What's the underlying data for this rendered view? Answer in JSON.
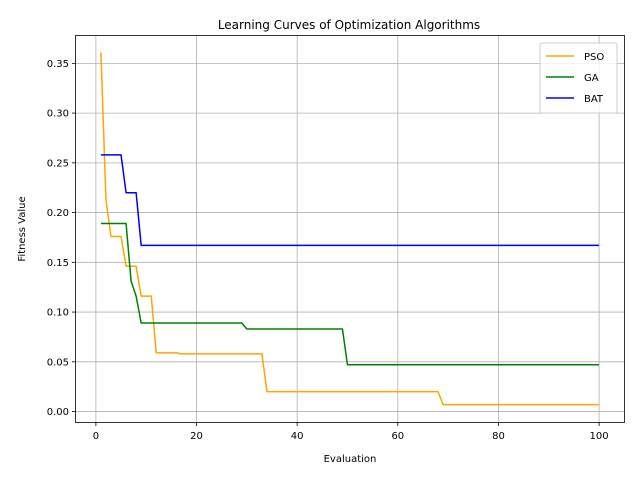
{
  "chart_data": {
    "type": "line",
    "title": "Learning Curves of Optimization Algorithms",
    "xlabel": "Evaluation",
    "ylabel": "Fitness Value",
    "xlim": [
      -3.95,
      104.95
    ],
    "ylim": [
      -0.0105,
      0.3775
    ],
    "xticks": [
      0,
      20,
      40,
      60,
      80,
      100
    ],
    "yticks": [
      0.0,
      0.05,
      0.1,
      0.15,
      0.2,
      0.25,
      0.3,
      0.35
    ],
    "xtick_labels": [
      "0",
      "20",
      "40",
      "60",
      "80",
      "100"
    ],
    "ytick_labels": [
      "0.00",
      "0.05",
      "0.10",
      "0.15",
      "0.20",
      "0.25",
      "0.30",
      "0.35"
    ],
    "grid": true,
    "legend_position": "top-right",
    "series": [
      {
        "name": "PSO",
        "color": "#ffa500",
        "points": [
          [
            1,
            0.361
          ],
          [
            2,
            0.213
          ],
          [
            3,
            0.176
          ],
          [
            4,
            0.176
          ],
          [
            5,
            0.176
          ],
          [
            6,
            0.146
          ],
          [
            7,
            0.146
          ],
          [
            8,
            0.146
          ],
          [
            9,
            0.116
          ],
          [
            10,
            0.116
          ],
          [
            11,
            0.116
          ],
          [
            12,
            0.059
          ],
          [
            16,
            0.059
          ],
          [
            17,
            0.058
          ],
          [
            33,
            0.058
          ],
          [
            34,
            0.02
          ],
          [
            68,
            0.02
          ],
          [
            69,
            0.007
          ],
          [
            100,
            0.007
          ]
        ]
      },
      {
        "name": "GA",
        "color": "#008000",
        "points": [
          [
            1,
            0.189
          ],
          [
            6,
            0.189
          ],
          [
            7,
            0.131
          ],
          [
            8,
            0.116
          ],
          [
            9,
            0.089
          ],
          [
            29,
            0.089
          ],
          [
            30,
            0.083
          ],
          [
            49,
            0.083
          ],
          [
            50,
            0.047
          ],
          [
            100,
            0.047
          ]
        ]
      },
      {
        "name": "BAT",
        "color": "#0000ff",
        "points": [
          [
            1,
            0.258
          ],
          [
            5,
            0.258
          ],
          [
            6,
            0.22
          ],
          [
            8,
            0.22
          ],
          [
            9,
            0.167
          ],
          [
            100,
            0.167
          ]
        ]
      }
    ]
  }
}
